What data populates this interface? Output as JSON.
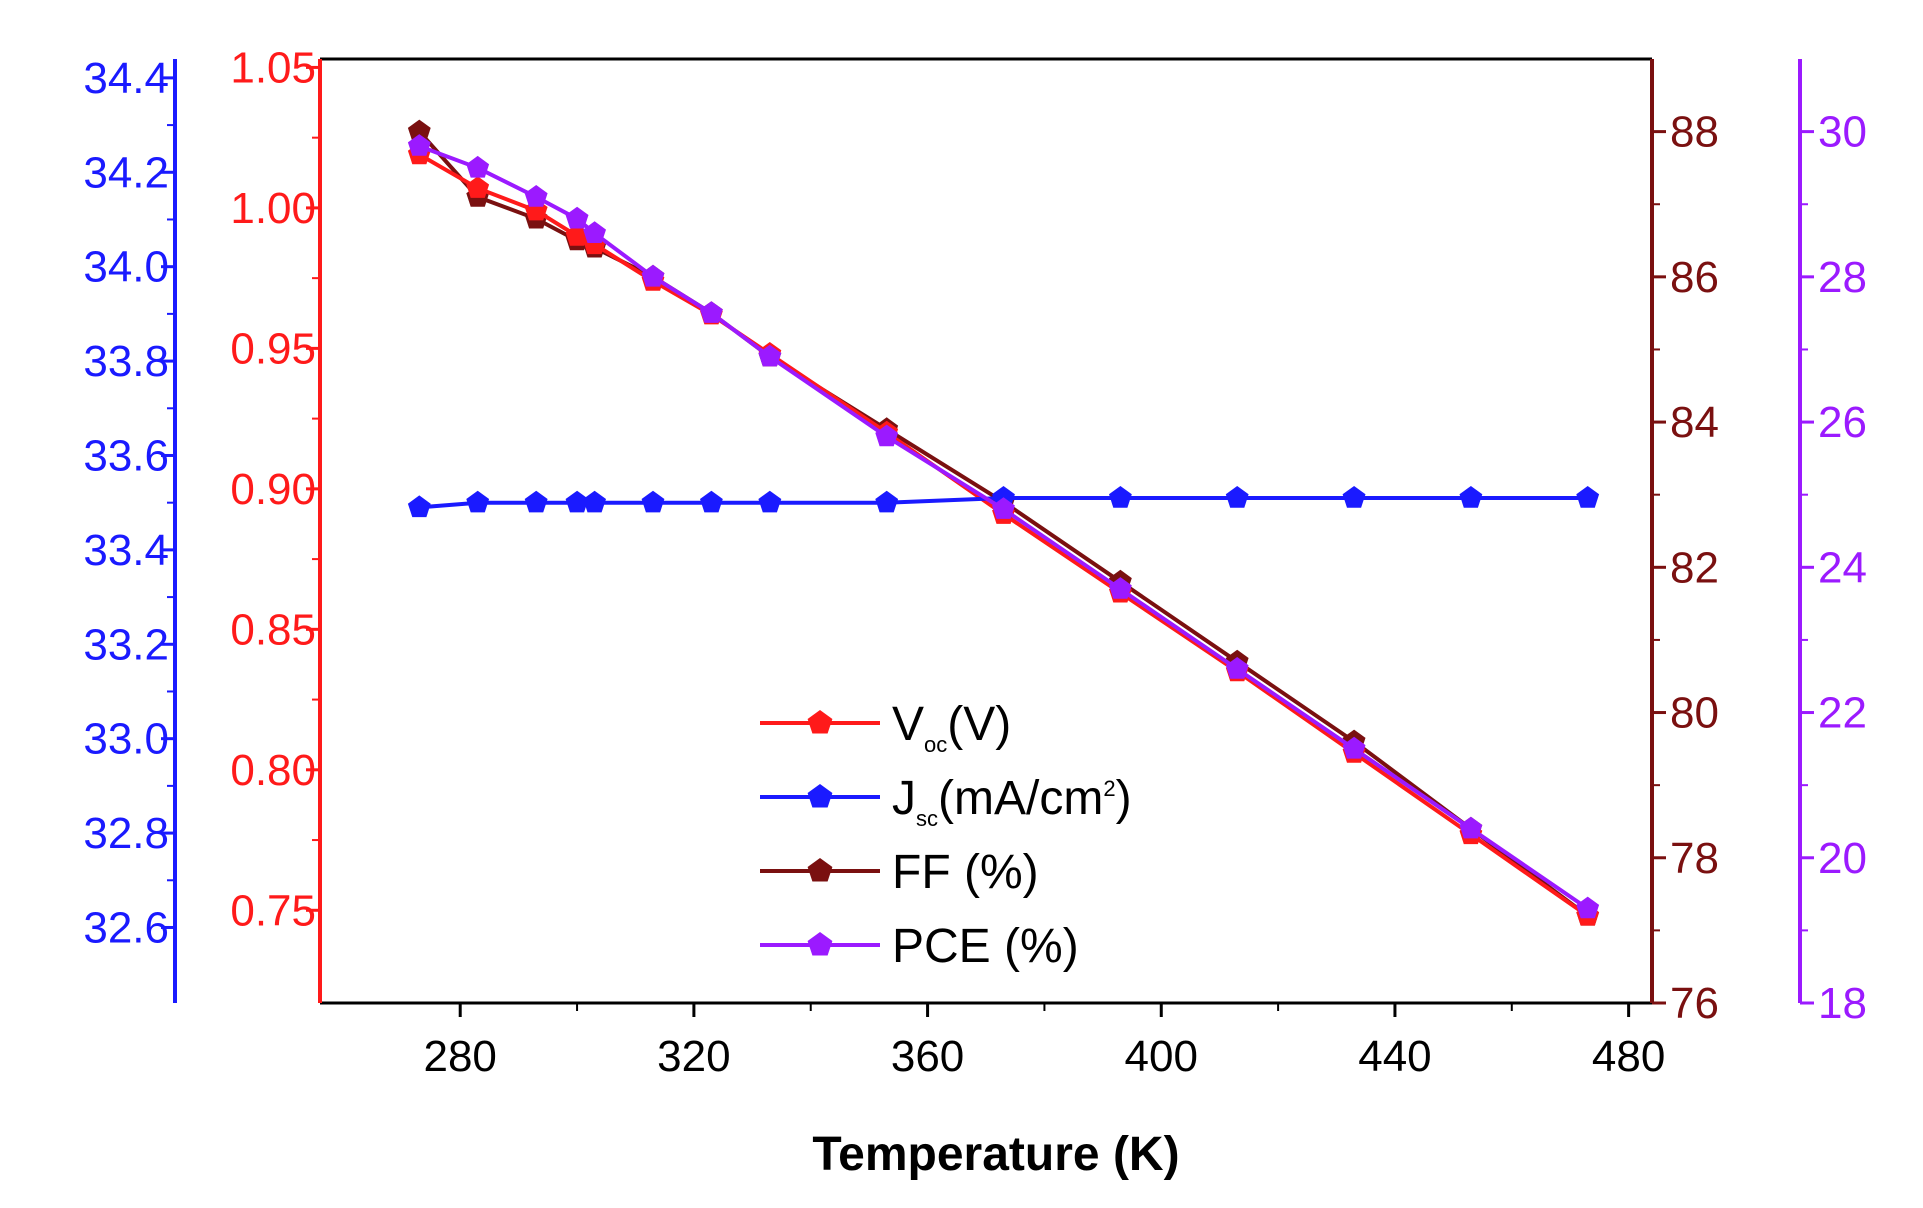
{
  "chart_data": {
    "type": "line",
    "xlabel": "Temperature (K)",
    "x": [
      273,
      283,
      293,
      300,
      303,
      313,
      323,
      333,
      353,
      373,
      393,
      413,
      433,
      453,
      473
    ],
    "xlim": [
      256,
      484
    ],
    "xticks": [
      280,
      320,
      360,
      400,
      440,
      480
    ],
    "axes": [
      {
        "id": "jsc",
        "side": "left-outer",
        "color": "#1a1aff",
        "ylim": [
          32.44,
          34.44
        ],
        "ticks": [
          "32.6",
          "32.8",
          "33.0",
          "33.2",
          "33.4",
          "33.6",
          "33.8",
          "34.0",
          "34.2",
          "34.4"
        ]
      },
      {
        "id": "voc",
        "side": "left-inner",
        "color": "#ff1a1a",
        "ylim": [
          0.717,
          1.053
        ],
        "ticks": [
          "0.75",
          "0.80",
          "0.85",
          "0.90",
          "0.95",
          "1.00",
          "1.05"
        ]
      },
      {
        "id": "ff",
        "side": "right-inner",
        "color": "#7a1010",
        "ylim": [
          76,
          89
        ],
        "ticks": [
          "76",
          "78",
          "80",
          "82",
          "84",
          "86",
          "88"
        ]
      },
      {
        "id": "pce",
        "side": "right-outer",
        "color": "#9b1aff",
        "ylim": [
          18,
          31
        ],
        "ticks": [
          "18",
          "20",
          "22",
          "24",
          "26",
          "28",
          "30"
        ]
      }
    ],
    "series": [
      {
        "name": "Voc(V)",
        "legend_main": "V",
        "legend_sub": "oc",
        "legend_tail": "(V)",
        "legend_sup": "",
        "legend_end": "",
        "axis": "voc",
        "color": "#ff1a1a",
        "values": [
          1.019,
          1.007,
          0.999,
          0.99,
          0.987,
          0.974,
          0.962,
          0.948,
          0.92,
          0.891,
          0.863,
          0.835,
          0.806,
          0.777,
          0.748
        ]
      },
      {
        "name": "Jsc(mA/cm2)",
        "legend_main": "J",
        "legend_sub": "sc",
        "legend_tail": "(mA/cm",
        "legend_sup": "2",
        "legend_end": ")",
        "axis": "jsc",
        "color": "#1a1aff",
        "values": [
          33.49,
          33.5,
          33.5,
          33.5,
          33.5,
          33.5,
          33.5,
          33.5,
          33.5,
          33.51,
          33.51,
          33.51,
          33.51,
          33.51,
          33.51
        ]
      },
      {
        "name": "FF (%)",
        "legend_main": "FF (%)",
        "legend_sub": "",
        "legend_tail": "",
        "legend_sup": "",
        "legend_end": "",
        "axis": "ff",
        "color": "#7a1010",
        "values": [
          88.0,
          87.1,
          86.8,
          86.5,
          86.4,
          86.0,
          85.5,
          84.9,
          83.9,
          82.9,
          81.8,
          80.7,
          79.6,
          78.4,
          77.2
        ]
      },
      {
        "name": "PCE (%)",
        "legend_main": "PCE (%)",
        "legend_sub": "",
        "legend_tail": "",
        "legend_sup": "",
        "legend_end": "",
        "axis": "pce",
        "color": "#9b1aff",
        "values": [
          29.8,
          29.5,
          29.1,
          28.8,
          28.6,
          28.0,
          27.5,
          26.9,
          25.8,
          24.8,
          23.7,
          22.6,
          21.5,
          20.4,
          19.3
        ]
      }
    ],
    "legend_position": "lower-center"
  }
}
